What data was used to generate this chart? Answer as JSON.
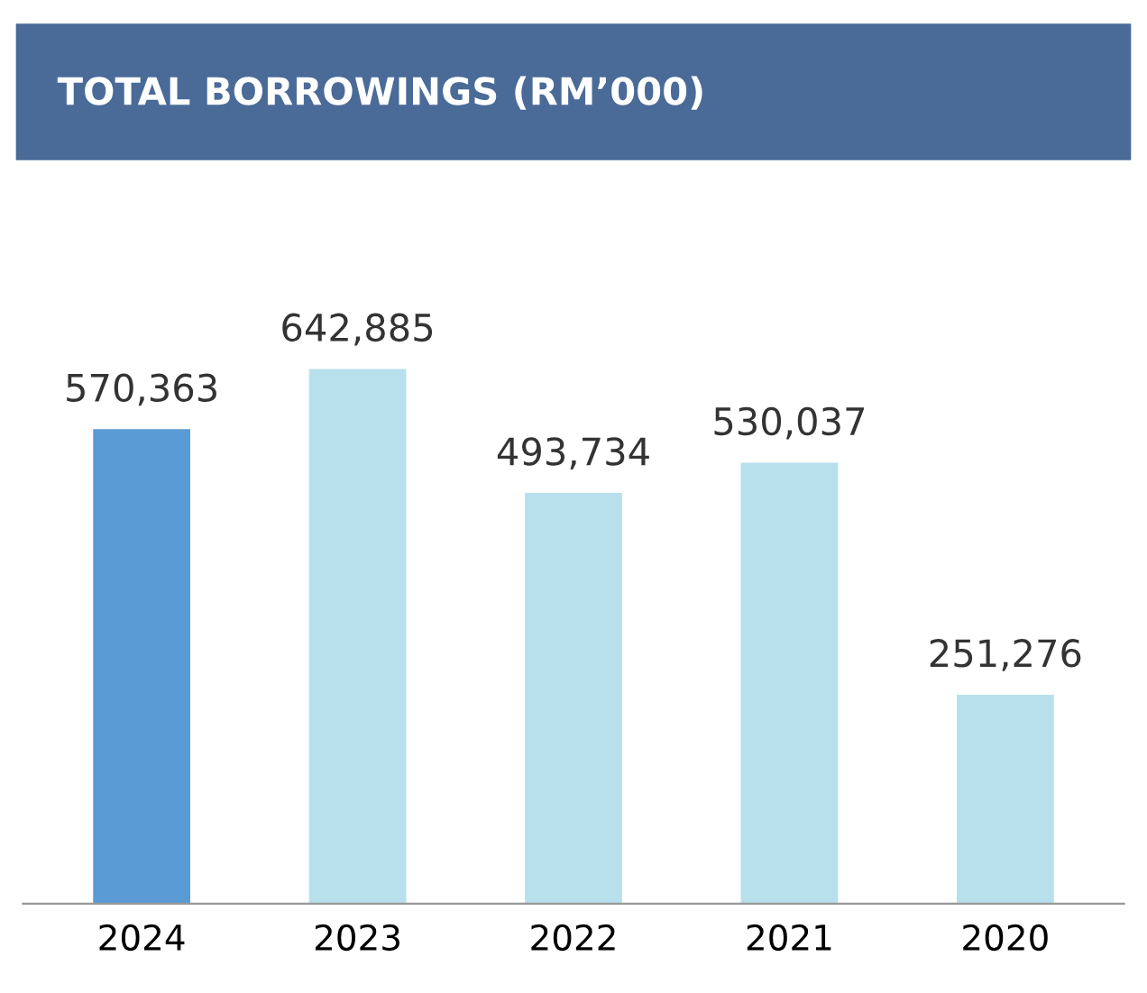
{
  "chart_data": {
    "type": "bar",
    "title": "TOTAL BORROWINGS (RM’000)",
    "categories": [
      "2024",
      "2023",
      "2022",
      "2021",
      "2020"
    ],
    "values": [
      570363,
      642885,
      493734,
      530037,
      251276
    ],
    "colors": [
      "#5b9bd5",
      "#b8e0ec",
      "#b8e0ec",
      "#b8e0ec",
      "#b8e0ec"
    ],
    "value_labels": [
      "570,363",
      "642,885",
      "493,734",
      "530,037",
      "251,276"
    ],
    "grid": false,
    "legend": false
  }
}
